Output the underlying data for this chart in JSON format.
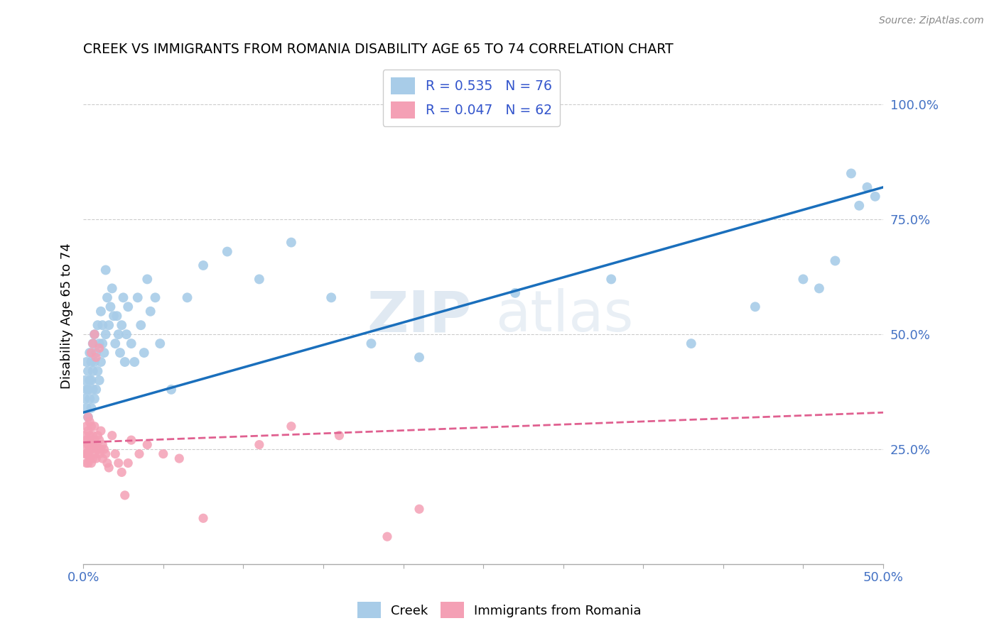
{
  "title": "CREEK VS IMMIGRANTS FROM ROMANIA DISABILITY AGE 65 TO 74 CORRELATION CHART",
  "source": "Source: ZipAtlas.com",
  "ylabel": "Disability Age 65 to 74",
  "ytick_labels": [
    "25.0%",
    "50.0%",
    "75.0%",
    "100.0%"
  ],
  "ytick_values": [
    0.25,
    0.5,
    0.75,
    1.0
  ],
  "xmin": 0.0,
  "xmax": 0.5,
  "ymin": 0.0,
  "ymax": 1.08,
  "legend_r_blue": "R = 0.535",
  "legend_n_blue": "N = 76",
  "legend_r_pink": "R = 0.047",
  "legend_n_pink": "N = 62",
  "label_creek": "Creek",
  "label_romania": "Immigrants from Romania",
  "watermark_zip": "ZIP",
  "watermark_atlas": "atlas",
  "blue_color": "#a8cce8",
  "blue_line_color": "#1a6fbc",
  "pink_color": "#f4a0b5",
  "pink_line_color": "#e06090",
  "blue_line_x0": 0.0,
  "blue_line_y0": 0.33,
  "blue_line_x1": 0.5,
  "blue_line_y1": 0.82,
  "pink_line_x0": 0.0,
  "pink_line_y0": 0.265,
  "pink_line_x1": 0.5,
  "pink_line_y1": 0.33,
  "blue_scatter_x": [
    0.001,
    0.001,
    0.002,
    0.002,
    0.002,
    0.003,
    0.003,
    0.003,
    0.004,
    0.004,
    0.004,
    0.005,
    0.005,
    0.005,
    0.006,
    0.006,
    0.006,
    0.007,
    0.007,
    0.007,
    0.008,
    0.008,
    0.009,
    0.009,
    0.01,
    0.01,
    0.011,
    0.011,
    0.012,
    0.012,
    0.013,
    0.014,
    0.014,
    0.015,
    0.016,
    0.017,
    0.018,
    0.019,
    0.02,
    0.021,
    0.022,
    0.023,
    0.024,
    0.025,
    0.026,
    0.027,
    0.028,
    0.03,
    0.032,
    0.034,
    0.036,
    0.038,
    0.04,
    0.042,
    0.045,
    0.048,
    0.055,
    0.065,
    0.075,
    0.09,
    0.11,
    0.13,
    0.155,
    0.18,
    0.21,
    0.27,
    0.33,
    0.38,
    0.42,
    0.45,
    0.46,
    0.47,
    0.48,
    0.485,
    0.49,
    0.495
  ],
  "blue_scatter_y": [
    0.36,
    0.4,
    0.34,
    0.38,
    0.44,
    0.32,
    0.38,
    0.42,
    0.36,
    0.4,
    0.46,
    0.34,
    0.4,
    0.44,
    0.38,
    0.42,
    0.48,
    0.36,
    0.44,
    0.5,
    0.38,
    0.46,
    0.42,
    0.52,
    0.4,
    0.48,
    0.44,
    0.55,
    0.48,
    0.52,
    0.46,
    0.64,
    0.5,
    0.58,
    0.52,
    0.56,
    0.6,
    0.54,
    0.48,
    0.54,
    0.5,
    0.46,
    0.52,
    0.58,
    0.44,
    0.5,
    0.56,
    0.48,
    0.44,
    0.58,
    0.52,
    0.46,
    0.62,
    0.55,
    0.58,
    0.48,
    0.38,
    0.58,
    0.65,
    0.68,
    0.62,
    0.7,
    0.58,
    0.48,
    0.45,
    0.59,
    0.62,
    0.48,
    0.56,
    0.62,
    0.6,
    0.66,
    0.85,
    0.78,
    0.82,
    0.8
  ],
  "pink_scatter_x": [
    0.001,
    0.001,
    0.001,
    0.002,
    0.002,
    0.002,
    0.002,
    0.003,
    0.003,
    0.003,
    0.003,
    0.003,
    0.004,
    0.004,
    0.004,
    0.004,
    0.005,
    0.005,
    0.005,
    0.005,
    0.005,
    0.006,
    0.006,
    0.006,
    0.006,
    0.007,
    0.007,
    0.007,
    0.007,
    0.008,
    0.008,
    0.008,
    0.009,
    0.009,
    0.01,
    0.01,
    0.01,
    0.011,
    0.011,
    0.012,
    0.012,
    0.013,
    0.014,
    0.015,
    0.016,
    0.018,
    0.02,
    0.022,
    0.024,
    0.026,
    0.028,
    0.03,
    0.035,
    0.04,
    0.05,
    0.06,
    0.075,
    0.11,
    0.13,
    0.16,
    0.19,
    0.21
  ],
  "pink_scatter_y": [
    0.24,
    0.26,
    0.28,
    0.22,
    0.24,
    0.27,
    0.3,
    0.22,
    0.24,
    0.26,
    0.29,
    0.32,
    0.23,
    0.25,
    0.28,
    0.31,
    0.22,
    0.25,
    0.27,
    0.3,
    0.46,
    0.23,
    0.26,
    0.28,
    0.48,
    0.24,
    0.27,
    0.3,
    0.5,
    0.23,
    0.26,
    0.45,
    0.25,
    0.28,
    0.24,
    0.27,
    0.47,
    0.25,
    0.29,
    0.23,
    0.26,
    0.25,
    0.24,
    0.22,
    0.21,
    0.28,
    0.24,
    0.22,
    0.2,
    0.15,
    0.22,
    0.27,
    0.24,
    0.26,
    0.24,
    0.23,
    0.1,
    0.26,
    0.3,
    0.28,
    0.06,
    0.12
  ]
}
